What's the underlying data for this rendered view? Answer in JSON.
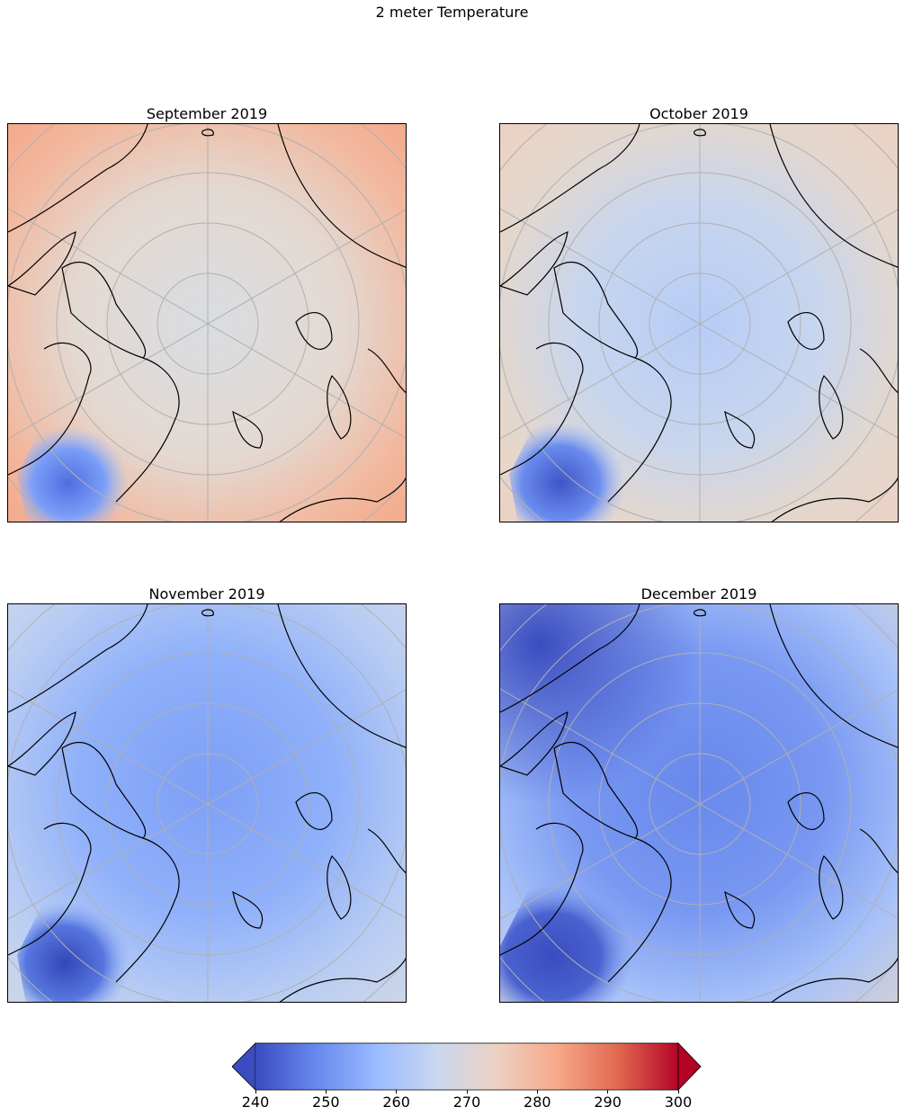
{
  "figure": {
    "title": "2 meter Temperature"
  },
  "panels": [
    {
      "title": "September 2019"
    },
    {
      "title": "October 2019"
    },
    {
      "title": "November 2019"
    },
    {
      "title": "December 2019"
    }
  ],
  "colorbar": {
    "min": 240,
    "max": 300,
    "ticks": [
      "240",
      "250",
      "260",
      "270",
      "280",
      "290",
      "300"
    ],
    "colormap": "coolwarm",
    "extend": "both",
    "colors": [
      "#3b4cc0",
      "#6788ee",
      "#9abbff",
      "#c9d7f0",
      "#edd1c2",
      "#f7a889",
      "#e26952",
      "#b40426"
    ]
  },
  "colors": {
    "coastline": "#000000",
    "gridline": "#b0b0b0"
  }
}
